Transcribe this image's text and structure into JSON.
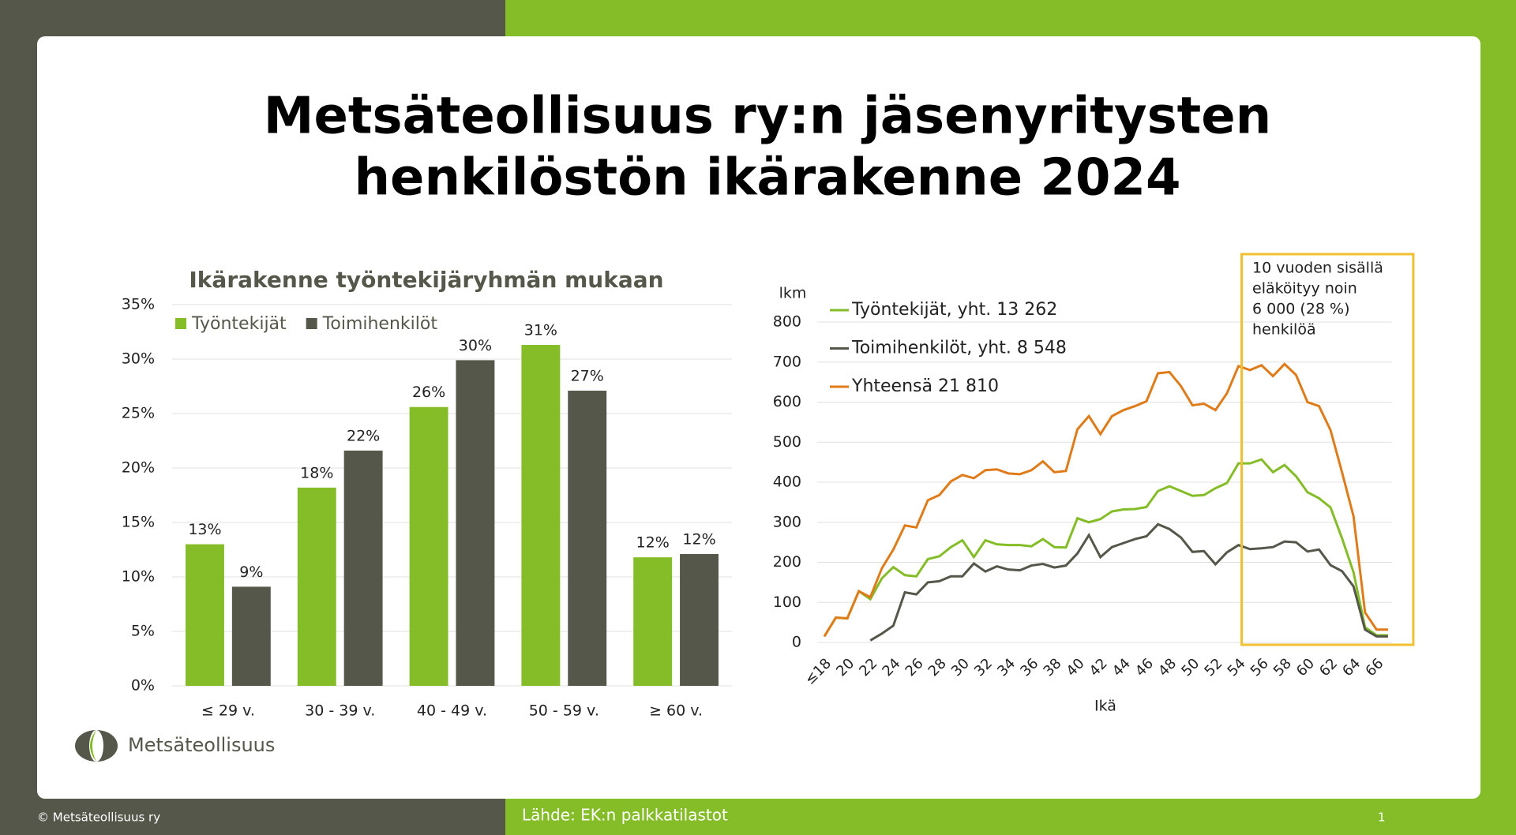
{
  "header": {
    "title_lines": [
      "Metsäteollisuus ry:n jäsenyritysten",
      "henkilöstön ikärakenne 2024"
    ]
  },
  "chart_data": [
    {
      "type": "bar",
      "title": "Ikärakenne työntekijäryhmän mukaan",
      "categories": [
        "≤ 29 v.",
        "30 - 39 v.",
        "40 - 49 v.",
        "50 - 59 v.",
        "≥ 60 v."
      ],
      "series": [
        {
          "name": "Työntekijät",
          "color": "#84bd27",
          "values": [
            13.0,
            18.2,
            25.6,
            31.3,
            11.8
          ],
          "value_labels": [
            "13%",
            "18%",
            "26%",
            "31%",
            "12%"
          ]
        },
        {
          "name": "Toimihenkilöt",
          "color": "#55574a",
          "values": [
            9.1,
            21.6,
            29.9,
            27.1,
            12.1
          ],
          "value_labels": [
            "9%",
            "22%",
            "30%",
            "27%",
            "12%"
          ]
        }
      ],
      "ylim": [
        0,
        35
      ],
      "yticks": [
        {
          "value": 0,
          "label": "0%"
        },
        {
          "value": 5,
          "label": "5%"
        },
        {
          "value": 10,
          "label": "10%"
        },
        {
          "value": 15,
          "label": "15%"
        },
        {
          "value": 20,
          "label": "20%"
        },
        {
          "value": 25,
          "label": "25%"
        },
        {
          "value": 30,
          "label": "30%"
        },
        {
          "value": 35,
          "label": "35%"
        }
      ],
      "grid": true,
      "legend": "top-left"
    },
    {
      "type": "line",
      "ylabel": "lkm",
      "xlabel": "Ikä",
      "categories": [
        "≤18",
        null,
        "20",
        null,
        "22",
        null,
        "24",
        null,
        "26",
        null,
        "28",
        null,
        "30",
        null,
        "32",
        null,
        "34",
        null,
        "36",
        null,
        "38",
        null,
        "40",
        null,
        "42",
        null,
        "44",
        null,
        "46",
        null,
        "48",
        null,
        "50",
        null,
        "52",
        null,
        "54",
        null,
        "56",
        null,
        "58",
        null,
        "60",
        null,
        "62",
        null,
        "64",
        null,
        "66",
        null
      ],
      "series": [
        {
          "name": "Työntekijät, yht. 13 262",
          "color": "#84bd27",
          "values": [
            15,
            62,
            60,
            128,
            108,
            160,
            188,
            168,
            165,
            208,
            215,
            238,
            255,
            213,
            255,
            245,
            243,
            243,
            240,
            258,
            238,
            237,
            310,
            300,
            308,
            327,
            332,
            333,
            338,
            378,
            390,
            378,
            366,
            368,
            385,
            398,
            447,
            447,
            457,
            425,
            443,
            415,
            375,
            360,
            337,
            260,
            175,
            38,
            18,
            18
          ]
        },
        {
          "name": "Toimihenkilöt, yht. 8 548",
          "color": "#55574a",
          "values": [
            null,
            null,
            null,
            null,
            5,
            22,
            42,
            125,
            120,
            150,
            153,
            165,
            165,
            197,
            177,
            190,
            182,
            180,
            192,
            196,
            187,
            192,
            222,
            268,
            213,
            238,
            248,
            258,
            265,
            295,
            283,
            262,
            226,
            228,
            195,
            225,
            243,
            233,
            235,
            238,
            252,
            250,
            227,
            232,
            193,
            178,
            140,
            32,
            15,
            15
          ]
        },
        {
          "name": "Yhteensä 21 810",
          "color": "#e07b1a",
          "values": [
            15,
            62,
            60,
            128,
            113,
            185,
            232,
            292,
            287,
            355,
            368,
            402,
            418,
            410,
            430,
            432,
            422,
            420,
            430,
            452,
            425,
            428,
            532,
            565,
            520,
            565,
            580,
            590,
            602,
            672,
            675,
            640,
            592,
            596,
            580,
            622,
            690,
            680,
            692,
            665,
            695,
            668,
            600,
            590,
            530,
            425,
            315,
            75,
            32,
            32
          ]
        }
      ],
      "ylim": [
        0,
        800
      ],
      "yticks": [
        0,
        100,
        200,
        300,
        400,
        500,
        600,
        700,
        800
      ],
      "grid": true,
      "legend": "top-left",
      "annotation": {
        "lines": [
          "10 vuoden sisällä",
          "eläköityy noin",
          "6 000 (28 %)",
          "henkilöä"
        ],
        "color": "#f0c030"
      }
    }
  ],
  "logo": "Metsäteollisuus",
  "footer": {
    "copyright": "© Metsäteollisuus ry",
    "source": "Lähde: EK:n palkkatilastot",
    "page": "1"
  }
}
